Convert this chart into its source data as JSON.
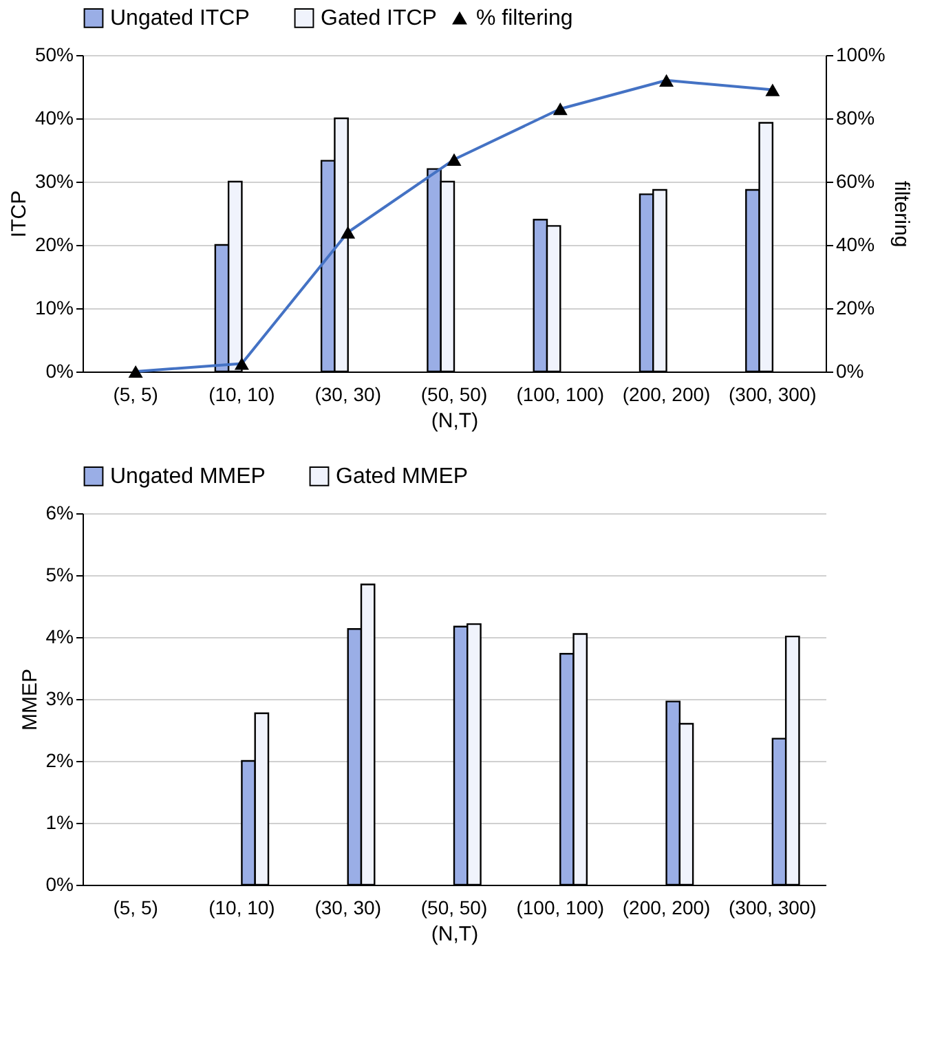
{
  "chart_data": [
    {
      "type": "bar",
      "categories": [
        "(5, 5)",
        "(10, 10)",
        "(30, 30)",
        "(50, 50)",
        "(100, 100)",
        "(200, 200)",
        "(300, 300)"
      ],
      "xlabel": "(N,T)",
      "ylabel": "ITCP",
      "y2label": "filtering",
      "series": [
        {
          "name": "Ungated ITCP",
          "color": "#9aaee6",
          "values": [
            null,
            20,
            33.3,
            32,
            24,
            28,
            28.7
          ]
        },
        {
          "name": "Gated ITCP",
          "color": "#f0f3fc",
          "values": [
            null,
            30,
            40,
            30,
            23,
            28.7,
            39.3
          ]
        },
        {
          "name": "% filtering",
          "type": "line",
          "axis": "y2",
          "marker": "triangle",
          "color": "#4472c4",
          "values": [
            0,
            2.5,
            44,
            67,
            83,
            92,
            89
          ]
        }
      ],
      "ylim": [
        0,
        50
      ],
      "yticks": [
        {
          "value": 0,
          "label": "0%"
        },
        {
          "value": 10,
          "label": "10%"
        },
        {
          "value": 20,
          "label": "20%"
        },
        {
          "value": 30,
          "label": "30%"
        },
        {
          "value": 40,
          "label": "40%"
        },
        {
          "value": 50,
          "label": "50%"
        }
      ],
      "y2lim": [
        0,
        100
      ],
      "y2ticks": [
        {
          "value": 0,
          "label": "0%"
        },
        {
          "value": 20,
          "label": "20%"
        },
        {
          "value": 40,
          "label": "40%"
        },
        {
          "value": 60,
          "label": "60%"
        },
        {
          "value": 80,
          "label": "80%"
        },
        {
          "value": 100,
          "label": "100%"
        }
      ],
      "grid": "y",
      "legend": "top"
    },
    {
      "type": "bar",
      "categories": [
        "(5, 5)",
        "(10, 10)",
        "(30, 30)",
        "(50, 50)",
        "(100, 100)",
        "(200, 200)",
        "(300, 300)"
      ],
      "xlabel": "(N,T)",
      "ylabel": "MMEP",
      "series": [
        {
          "name": "Ungated MMEP",
          "color": "#9aaee6",
          "values": [
            null,
            2.0,
            4.13,
            4.17,
            3.73,
            2.96,
            2.36
          ]
        },
        {
          "name": "Gated MMEP",
          "color": "#f0f3fc",
          "values": [
            null,
            2.77,
            4.85,
            4.21,
            4.05,
            2.6,
            4.01
          ]
        }
      ],
      "ylim": [
        0,
        6
      ],
      "yticks": [
        {
          "value": 0,
          "label": "0%"
        },
        {
          "value": 1,
          "label": "1%"
        },
        {
          "value": 2,
          "label": "2%"
        },
        {
          "value": 3,
          "label": "3%"
        },
        {
          "value": 4,
          "label": "4%"
        },
        {
          "value": 5,
          "label": "5%"
        },
        {
          "value": 6,
          "label": "6%"
        }
      ],
      "grid": "y",
      "legend": "top"
    }
  ]
}
